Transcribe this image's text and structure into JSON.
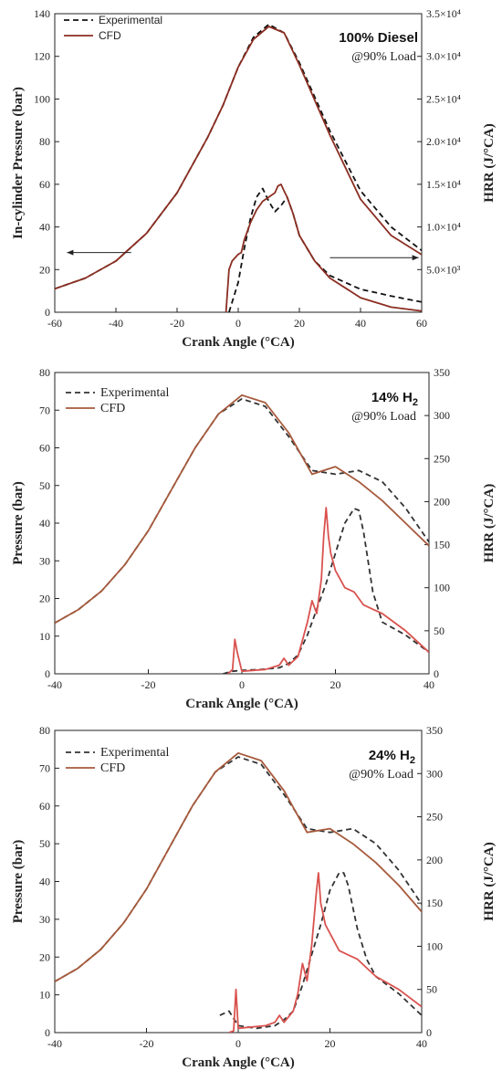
{
  "chart_data": [
    {
      "type": "line",
      "xlabel": "Crank Angle (°CA)",
      "ylabel": "In-cylinder Pressure (bar)",
      "y2label": "HRR (J/°CA)",
      "xlim": [
        -60,
        60
      ],
      "ylim": [
        0,
        140
      ],
      "y2lim": [
        0,
        35000
      ],
      "xticks": [
        "-60",
        "-40",
        "-20",
        "0",
        "20",
        "40",
        "60"
      ],
      "yticks": [
        "0",
        "20",
        "40",
        "60",
        "80",
        "100",
        "120",
        "140"
      ],
      "y2ticks": [
        "5.0×10³",
        "1.0×10⁴",
        "1.5×10⁴",
        "2.0×10⁴",
        "2.5×10⁴",
        "3.0×10⁴",
        "3.5×10⁴"
      ],
      "y2tick_values": [
        5000,
        10000,
        15000,
        20000,
        25000,
        30000,
        35000
      ],
      "legend": [
        "Experimental",
        "CFD"
      ],
      "annotation_title": "100% Diesel",
      "annotation_sub": "@90% Load",
      "colors": {
        "experimental": "#111111",
        "cfd": "#8b2e22"
      },
      "series": [
        {
          "name": "Experimental",
          "axis": "left",
          "style": "dashed",
          "x": [
            -60,
            -50,
            -40,
            -30,
            -20,
            -10,
            -5,
            0,
            5,
            10,
            15,
            20,
            30,
            40,
            50,
            60
          ],
          "y": [
            11,
            16,
            24,
            37,
            56,
            82,
            97,
            115,
            129,
            135,
            131,
            117,
            85,
            57,
            40,
            29
          ]
        },
        {
          "name": "CFD",
          "axis": "left",
          "style": "solid",
          "x": [
            -60,
            -50,
            -40,
            -30,
            -20,
            -10,
            -5,
            0,
            5,
            10,
            15,
            20,
            30,
            40,
            50,
            60
          ],
          "y": [
            11,
            16,
            24,
            37,
            56,
            82,
            97,
            115,
            128,
            134,
            131,
            116,
            83,
            53,
            36,
            27
          ]
        },
        {
          "name": "Experimental",
          "axis": "right",
          "style": "dashed",
          "x": [
            -3,
            0,
            2,
            4,
            6,
            8,
            10,
            12,
            14,
            16,
            18,
            20,
            25,
            30,
            40,
            50,
            60
          ],
          "y": [
            0,
            3500,
            7500,
            11000,
            13500,
            14500,
            13000,
            11800,
            12500,
            13500,
            11500,
            9000,
            6000,
            4300,
            2700,
            1900,
            1200
          ]
        },
        {
          "name": "CFD",
          "axis": "right",
          "style": "solid",
          "x": [
            -4,
            -3,
            -2,
            0,
            1,
            2,
            4,
            6,
            8,
            10,
            12,
            13,
            14,
            15,
            16,
            18,
            20,
            25,
            30,
            40,
            50,
            60
          ],
          "y": [
            0,
            5000,
            6000,
            6800,
            7000,
            8500,
            10500,
            12000,
            13000,
            13500,
            14000,
            14800,
            15000,
            14200,
            13500,
            11500,
            9000,
            6000,
            4000,
            1700,
            600,
            150
          ]
        }
      ]
    },
    {
      "type": "line",
      "xlabel": "Crank Angle (°CA)",
      "ylabel": "Pressure (bar)",
      "y2label": "HRR (J/°CA)",
      "xlim": [
        -40,
        40
      ],
      "ylim": [
        0,
        80
      ],
      "y2lim": [
        0,
        350
      ],
      "xticks": [
        "-40",
        "-20",
        "0",
        "20",
        "40"
      ],
      "yticks": [
        "0",
        "10",
        "20",
        "30",
        "40",
        "50",
        "60",
        "70",
        "80"
      ],
      "y2ticks": [
        "0",
        "50",
        "100",
        "150",
        "200",
        "250",
        "300",
        "350"
      ],
      "y2tick_values": [
        0,
        50,
        100,
        150,
        200,
        250,
        300,
        350
      ],
      "legend": [
        "Experimental",
        "CFD"
      ],
      "annotation_title": "14% H",
      "annotation_title_sub": "2",
      "annotation_sub": "@90% Load",
      "colors": {
        "experimental": "#333333",
        "cfd": "#a65a3c",
        "cfd_hrr": "#d9534f"
      },
      "series": [
        {
          "name": "Experimental",
          "axis": "left",
          "style": "dashed",
          "x": [
            -40,
            -35,
            -30,
            -25,
            -20,
            -15,
            -10,
            -5,
            0,
            5,
            10,
            15,
            20,
            25,
            30,
            35,
            40
          ],
          "y": [
            13.5,
            17,
            22,
            29,
            38,
            49,
            60,
            69,
            73,
            71,
            63,
            54,
            53,
            54,
            51,
            44,
            35
          ]
        },
        {
          "name": "CFD",
          "axis": "left",
          "style": "solid",
          "x": [
            -40,
            -35,
            -30,
            -25,
            -20,
            -15,
            -10,
            -5,
            0,
            5,
            10,
            15,
            20,
            25,
            30,
            35,
            40
          ],
          "y": [
            13.5,
            17,
            22,
            29,
            38,
            49,
            60,
            69,
            74,
            72,
            64,
            53,
            55,
            51,
            46,
            40,
            34
          ]
        },
        {
          "name": "Experimental",
          "axis": "right",
          "style": "dashed",
          "x": [
            -4,
            -2,
            0,
            4,
            8,
            10,
            12,
            14,
            16,
            18,
            20,
            22,
            24,
            25,
            26,
            28,
            30,
            35,
            40
          ],
          "y": [
            0,
            3,
            4,
            5,
            7,
            12,
            22,
            45,
            75,
            105,
            140,
            175,
            192,
            190,
            165,
            95,
            60,
            45,
            25
          ]
        },
        {
          "name": "CFD",
          "axis": "right",
          "style": "solid",
          "x": [
            -3,
            -2,
            -1.5,
            -1,
            0,
            5,
            8,
            9,
            10,
            12,
            14,
            15,
            16,
            17,
            17.5,
            18,
            18.5,
            19,
            20,
            22,
            24,
            26,
            28,
            30,
            35,
            40
          ],
          "y": [
            0,
            5,
            40,
            25,
            3,
            5,
            10,
            18,
            10,
            20,
            60,
            85,
            70,
            110,
            160,
            193,
            160,
            140,
            120,
            100,
            95,
            80,
            75,
            70,
            50,
            25
          ]
        }
      ]
    },
    {
      "type": "line",
      "xlabel": "Crank Angle (°CA)",
      "ylabel": "Pressure (bar)",
      "y2label": "HRR (J/°CA)",
      "xlim": [
        -40,
        40
      ],
      "ylim": [
        0,
        80
      ],
      "y2lim": [
        0,
        350
      ],
      "xticks": [
        "-40",
        "-20",
        "0",
        "20",
        "40"
      ],
      "yticks": [
        "0",
        "10",
        "20",
        "30",
        "40",
        "50",
        "60",
        "70",
        "80"
      ],
      "y2ticks": [
        "0",
        "50",
        "100",
        "150",
        "200",
        "250",
        "300",
        "350"
      ],
      "y2tick_values": [
        0,
        50,
        100,
        150,
        200,
        250,
        300,
        350
      ],
      "legend": [
        "Experimental",
        "CFD"
      ],
      "annotation_title": "24% H",
      "annotation_title_sub": "2",
      "annotation_sub": "@90% Load",
      "colors": {
        "experimental": "#333333",
        "cfd": "#a65a3c",
        "cfd_hrr": "#d9534f"
      },
      "series": [
        {
          "name": "Experimental",
          "axis": "left",
          "style": "dashed",
          "x": [
            -40,
            -35,
            -30,
            -25,
            -20,
            -15,
            -10,
            -5,
            0,
            5,
            10,
            15,
            20,
            25,
            30,
            35,
            40
          ],
          "y": [
            13.5,
            17,
            22,
            29,
            38,
            49,
            60,
            69,
            73,
            71,
            63,
            54,
            53,
            54,
            50,
            43,
            34
          ]
        },
        {
          "name": "CFD",
          "axis": "left",
          "style": "solid",
          "x": [
            -40,
            -35,
            -30,
            -25,
            -20,
            -15,
            -10,
            -5,
            0,
            5,
            10,
            15,
            20,
            25,
            30,
            35,
            40
          ],
          "y": [
            13.5,
            17,
            22,
            29,
            38,
            49,
            60,
            69,
            74,
            72,
            64,
            53,
            54,
            50,
            45,
            39,
            32
          ]
        },
        {
          "name": "Experimental",
          "axis": "right",
          "style": "dashed",
          "x": [
            -4,
            -2,
            0,
            4,
            8,
            10,
            12,
            14,
            16,
            18,
            20,
            22,
            23,
            24,
            26,
            28,
            30,
            35,
            40
          ],
          "y": [
            20,
            25,
            8,
            5,
            8,
            15,
            25,
            55,
            90,
            125,
            165,
            185,
            185,
            170,
            120,
            85,
            65,
            45,
            20
          ]
        },
        {
          "name": "CFD",
          "axis": "right",
          "style": "solid",
          "x": [
            -2,
            -1,
            -0.5,
            0,
            2,
            6,
            8,
            9,
            10,
            12,
            13,
            14,
            15,
            16,
            17,
            17.5,
            18,
            19,
            20,
            22,
            24,
            26,
            28,
            30,
            35,
            40
          ],
          "y": [
            0,
            2,
            50,
            5,
            6,
            8,
            12,
            20,
            12,
            25,
            45,
            80,
            60,
            100,
            160,
            185,
            150,
            125,
            115,
            95,
            90,
            85,
            75,
            65,
            50,
            30
          ]
        }
      ]
    }
  ]
}
